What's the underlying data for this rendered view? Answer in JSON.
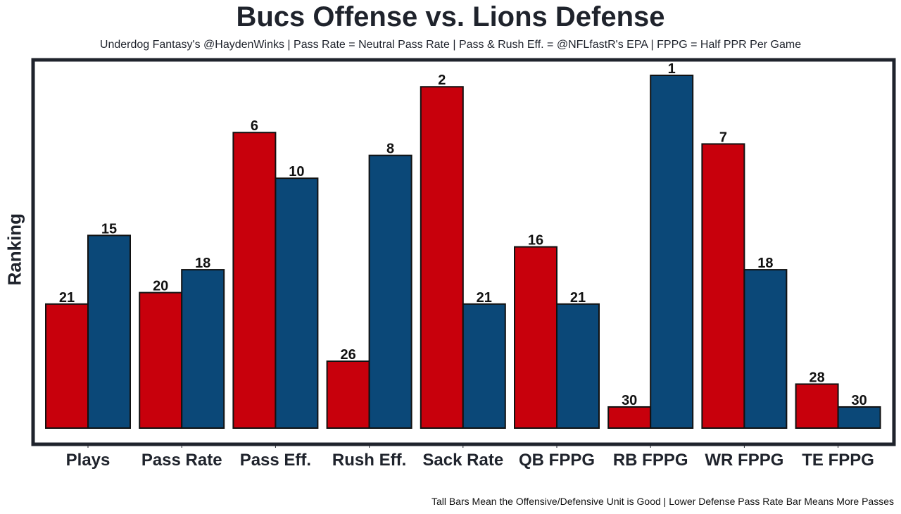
{
  "chart_data": {
    "type": "bar",
    "title": "Bucs Offense vs. Lions Defense",
    "subtitle": "Underdog Fantasy's @HaydenWinks | Pass Rate = Neutral Pass Rate | Pass & Rush Eff. = @NFLfastR's EPA | FPPG = Half PPR Per Game",
    "xlabel": "",
    "ylabel": "Ranking",
    "footer": "Tall Bars Mean the Offensive/Defensive Unit is Good | Lower Defense Pass Rate Bar Means More Passes",
    "categories": [
      "Plays",
      "Pass Rate",
      "Pass Eff.",
      "Rush Eff.",
      "Sack Rate",
      "QB FPPG",
      "RB FPPG",
      "WR FPPG",
      "TE FPPG"
    ],
    "series": [
      {
        "name": "Bucs Offense",
        "color": "#c8000c",
        "values": [
          21,
          20,
          6,
          26,
          2,
          16,
          30,
          7,
          28
        ]
      },
      {
        "name": "Lions Defense",
        "color": "#0b4878",
        "values": [
          15,
          18,
          10,
          8,
          21,
          21,
          1,
          18,
          30
        ]
      }
    ],
    "value_note": "Bar height is inverse of rank (rank 1 tallest, rank 32 shortest)",
    "rank_range": [
      1,
      32
    ],
    "grid": false,
    "legend": "none"
  }
}
